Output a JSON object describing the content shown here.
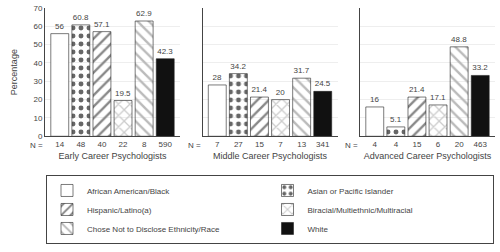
{
  "chart_data": [
    {
      "type": "bar",
      "x_label": "Early Career Psychologists",
      "y_label": "Percentage",
      "categories": [
        "14",
        "48",
        "40",
        "22",
        "8",
        "590"
      ],
      "annotations": [
        "N ="
      ],
      "series": [
        {
          "name": "African American/Black",
          "color": "#ffffff",
          "values": [
            56.0,
            null,
            null,
            null,
            null,
            null
          ]
        },
        {
          "name": "Asian or Pacific Islander",
          "color": "#666666",
          "values": [
            null,
            60.8,
            null,
            null,
            null,
            null
          ]
        },
        {
          "name": "Hispanic/Latino(a)",
          "color": "#888888",
          "values": [
            null,
            null,
            57.1,
            null,
            null,
            null
          ]
        },
        {
          "name": "Biracial/Multiethnic/Multiracial",
          "color": "#cccccc",
          "values": [
            null,
            null,
            null,
            19.5,
            null,
            null
          ]
        },
        {
          "name": "Chose Not to Disclose Ethnicity/Race",
          "color": "#bbbbbb",
          "values": [
            null,
            null,
            null,
            null,
            62.9,
            null
          ]
        },
        {
          "name": "White",
          "color": "#111111",
          "values": [
            null,
            null,
            null,
            null,
            null,
            42.3
          ]
        }
      ],
      "ylim": [
        0,
        70
      ],
      "yticks": [
        0,
        10,
        20,
        30,
        40,
        50,
        60,
        70
      ],
      "grid": true,
      "data_labels": true,
      "legend": "bottom"
    },
    {
      "type": "bar",
      "x_label": "Middle Career Psychologists",
      "categories": [
        "7",
        "27",
        "15",
        "7",
        "13",
        "341"
      ],
      "annotations": [
        "N ="
      ],
      "series": [
        {
          "name": "African American/Black",
          "color": "#ffffff",
          "values": [
            28.0,
            null,
            null,
            null,
            null,
            null
          ]
        },
        {
          "name": "Asian or Pacific Islander",
          "color": "#666666",
          "values": [
            null,
            34.2,
            null,
            null,
            null,
            null
          ]
        },
        {
          "name": "Hispanic/Latino(a)",
          "color": "#888888",
          "values": [
            null,
            null,
            21.4,
            null,
            null,
            null
          ]
        },
        {
          "name": "Biracial/Multiethnic/Multiracial",
          "color": "#cccccc",
          "values": [
            null,
            null,
            null,
            20.0,
            null,
            null
          ]
        },
        {
          "name": "Chose Not to Disclose Ethnicity/Race",
          "color": "#bbbbbb",
          "values": [
            null,
            null,
            null,
            null,
            31.7,
            null
          ]
        },
        {
          "name": "White",
          "color": "#111111",
          "values": [
            null,
            null,
            null,
            null,
            null,
            24.5
          ]
        }
      ],
      "ylim": [
        0,
        70
      ],
      "yticks": [
        0,
        10,
        20,
        30,
        40,
        50,
        60,
        70
      ],
      "grid": true,
      "data_labels": true,
      "tick_labels": "x"
    },
    {
      "type": "bar",
      "x_label": "Advanced Career Psychologists",
      "categories": [
        "4",
        "4",
        "15",
        "6",
        "20",
        "463"
      ],
      "annotations": [
        "N ="
      ],
      "series": [
        {
          "name": "African American/Black",
          "color": "#ffffff",
          "values": [
            16.0,
            null,
            null,
            null,
            null,
            null
          ]
        },
        {
          "name": "Asian or Pacific Islander",
          "color": "#666666",
          "values": [
            null,
            5.1,
            null,
            null,
            null,
            null
          ]
        },
        {
          "name": "Hispanic/Latino(a)",
          "color": "#888888",
          "values": [
            null,
            null,
            21.4,
            null,
            null,
            null
          ]
        },
        {
          "name": "Biracial/Multiethnic/Multiracial",
          "color": "#cccccc",
          "values": [
            null,
            null,
            null,
            17.1,
            null,
            null
          ]
        },
        {
          "name": "Chose Not to Disclose Ethnicity/Race",
          "color": "#bbbbbb",
          "values": [
            null,
            null,
            null,
            null,
            48.8,
            null
          ]
        },
        {
          "name": "White",
          "color": "#111111",
          "values": [
            null,
            null,
            null,
            null,
            null,
            33.2
          ]
        }
      ],
      "ylim": [
        0,
        70
      ],
      "yticks": [
        0,
        10,
        20,
        30,
        40,
        50,
        60,
        70
      ],
      "grid": true,
      "data_labels": true,
      "tick_labels": "x"
    }
  ]
}
